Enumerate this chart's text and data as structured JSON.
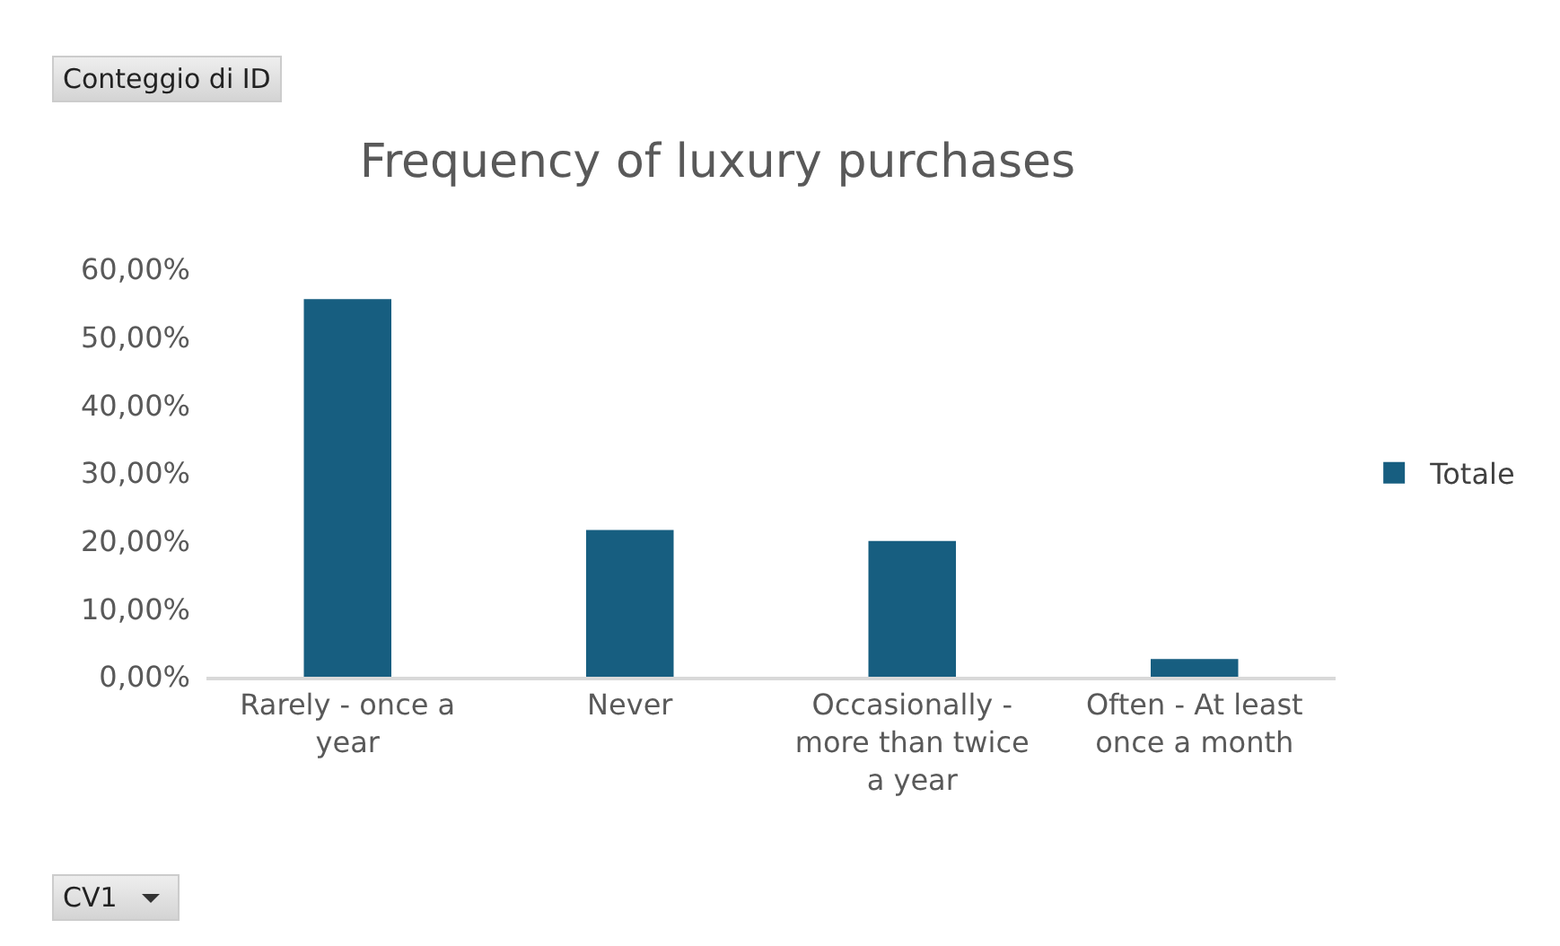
{
  "chart_data": {
    "type": "bar",
    "title": "Frequency of luxury purchases",
    "categories": [
      "Rarely - once a year",
      "Never",
      "Occasionally - more than twice a year",
      "Often - At least once a month"
    ],
    "series": [
      {
        "name": "Totale",
        "color": "#175e80",
        "values": [
          55.6,
          21.6,
          20.0,
          2.6
        ]
      }
    ],
    "ylim": [
      0,
      60
    ],
    "yticks": [
      {
        "value": 0,
        "label": "0,00%"
      },
      {
        "value": 10,
        "label": "10,00%"
      },
      {
        "value": 20,
        "label": "20,00%"
      },
      {
        "value": 30,
        "label": "30,00%"
      },
      {
        "value": 40,
        "label": "40,00%"
      },
      {
        "value": 50,
        "label": "50,00%"
      },
      {
        "value": 60,
        "label": "60,00%"
      }
    ],
    "grid": false,
    "legend": "right",
    "annotations": [
      "Conteggio di ID",
      "CV1"
    ]
  }
}
